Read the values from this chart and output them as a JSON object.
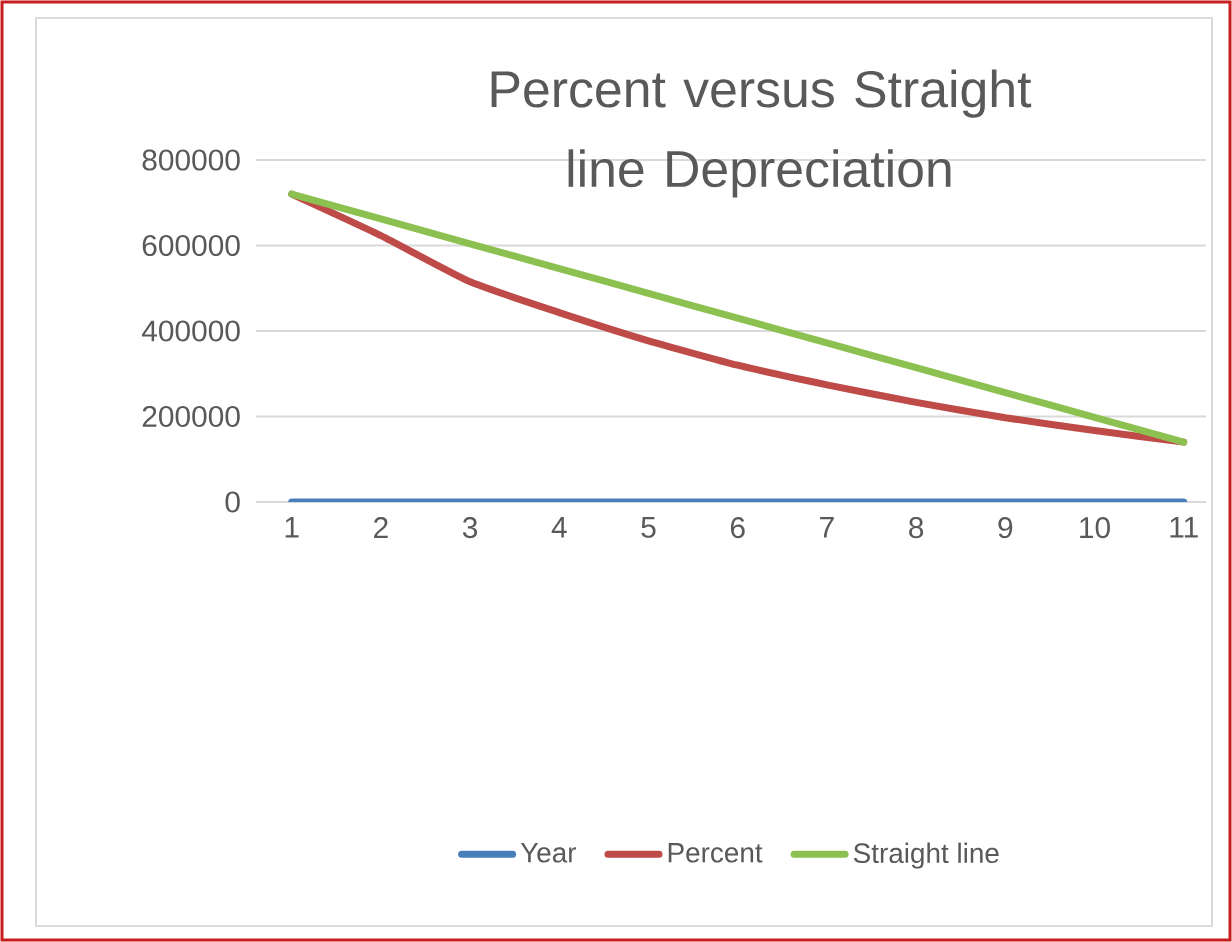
{
  "chart_data": {
    "type": "line",
    "title": "Percent versus Straight line Depreciation",
    "categories": [
      "1",
      "2",
      "3",
      "4",
      "5",
      "6",
      "7",
      "8",
      "9",
      "10",
      "11"
    ],
    "series": [
      {
        "name": "Year",
        "color": "#4a7ebb",
        "values": [
          0,
          0,
          0,
          0,
          0,
          0,
          0,
          0,
          0,
          0,
          0
        ]
      },
      {
        "name": "Percent",
        "color": "#be4b48",
        "values": [
          720000,
          623000,
          515000,
          443000,
          377000,
          320000,
          274000,
          233000,
          197000,
          167000,
          140000
        ]
      },
      {
        "name": "Straight line",
        "color": "#8cc152",
        "values": [
          720000,
          662000,
          604000,
          546000,
          488000,
          430000,
          372000,
          314000,
          256000,
          198000,
          140000
        ]
      }
    ],
    "ylim": [
      0,
      800000
    ],
    "yticks": [
      0,
      200000,
      400000,
      600000,
      800000
    ],
    "grid": "y",
    "legend": "bottom",
    "marker": "none",
    "line_style": "solid"
  }
}
